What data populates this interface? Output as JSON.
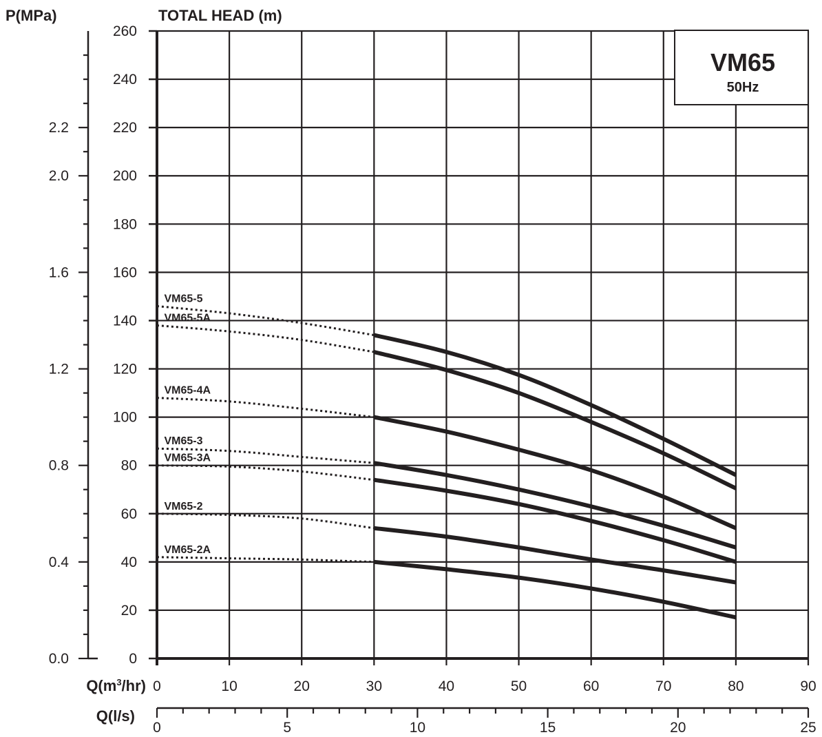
{
  "chart_data": {
    "type": "line",
    "title": "VM65",
    "subtitle": "50Hz",
    "head_axis": {
      "label": "TOTAL HEAD (m)",
      "ylim": [
        0,
        260
      ],
      "ticks": [
        0,
        20,
        40,
        60,
        80,
        100,
        120,
        140,
        160,
        180,
        200,
        220,
        240,
        260
      ]
    },
    "pressure_axis": {
      "label": "P(MPa)",
      "ylim": [
        0.0,
        2.6
      ],
      "ticks": [
        0.0,
        0.4,
        0.8,
        1.2,
        1.6,
        2.0,
        2.2
      ]
    },
    "flow_axis_m3h": {
      "label_main": "Q(m",
      "label_sup": "3",
      "label_end": "/hr)",
      "xlim": [
        0,
        90
      ],
      "ticks": [
        0,
        10,
        20,
        30,
        40,
        50,
        60,
        70,
        80,
        90
      ]
    },
    "flow_axis_ls": {
      "label": "Q(l/s)",
      "xlim": [
        0,
        25
      ],
      "ticks": [
        0,
        5,
        10,
        15,
        20,
        25
      ]
    },
    "grid": true,
    "series": [
      {
        "name": "VM65-5",
        "dashed": {
          "x": [
            0,
            10,
            20,
            30
          ],
          "y": [
            146,
            143,
            139,
            134
          ]
        },
        "solid": {
          "x": [
            30,
            40,
            50,
            60,
            70,
            80
          ],
          "y": [
            134,
            127,
            117.5,
            105,
            91,
            76
          ]
        }
      },
      {
        "name": "VM65-5A",
        "dashed": {
          "x": [
            0,
            10,
            20,
            30
          ],
          "y": [
            138,
            135.5,
            132,
            127
          ]
        },
        "solid": {
          "x": [
            30,
            40,
            50,
            60,
            70,
            80
          ],
          "y": [
            127,
            119.5,
            110,
            98,
            85,
            70.5
          ]
        }
      },
      {
        "name": "VM65-4A",
        "dashed": {
          "x": [
            0,
            10,
            20,
            30
          ],
          "y": [
            108,
            106.5,
            103.5,
            100
          ]
        },
        "solid": {
          "x": [
            30,
            40,
            50,
            60,
            70,
            80
          ],
          "y": [
            100,
            94,
            86.5,
            78,
            67,
            54
          ]
        }
      },
      {
        "name": "VM65-3",
        "dashed": {
          "x": [
            0,
            10,
            20,
            30
          ],
          "y": [
            87,
            86,
            83.5,
            81
          ]
        },
        "solid": {
          "x": [
            30,
            40,
            50,
            60,
            70,
            80
          ],
          "y": [
            81,
            76,
            70,
            63,
            55,
            46
          ]
        }
      },
      {
        "name": "VM65-3A",
        "dashed": {
          "x": [
            0,
            10,
            20,
            30
          ],
          "y": [
            80,
            79.5,
            77.5,
            74
          ]
        },
        "solid": {
          "x": [
            30,
            40,
            50,
            60,
            70,
            80
          ],
          "y": [
            74,
            69.5,
            64,
            57,
            49,
            40
          ]
        }
      },
      {
        "name": "VM65-2",
        "dashed": {
          "x": [
            0,
            10,
            20,
            30
          ],
          "y": [
            60,
            59.5,
            58,
            54
          ]
        },
        "solid": {
          "x": [
            30,
            40,
            50,
            60,
            70,
            80
          ],
          "y": [
            54,
            50.5,
            46,
            41,
            36.5,
            31.5
          ]
        }
      },
      {
        "name": "VM65-2A",
        "dashed": {
          "x": [
            0,
            10,
            20,
            30
          ],
          "y": [
            42,
            41.5,
            41,
            40
          ]
        },
        "solid": {
          "x": [
            30,
            40,
            50,
            60,
            70,
            80
          ],
          "y": [
            40,
            37,
            33.5,
            29,
            23.5,
            17
          ]
        }
      }
    ]
  }
}
